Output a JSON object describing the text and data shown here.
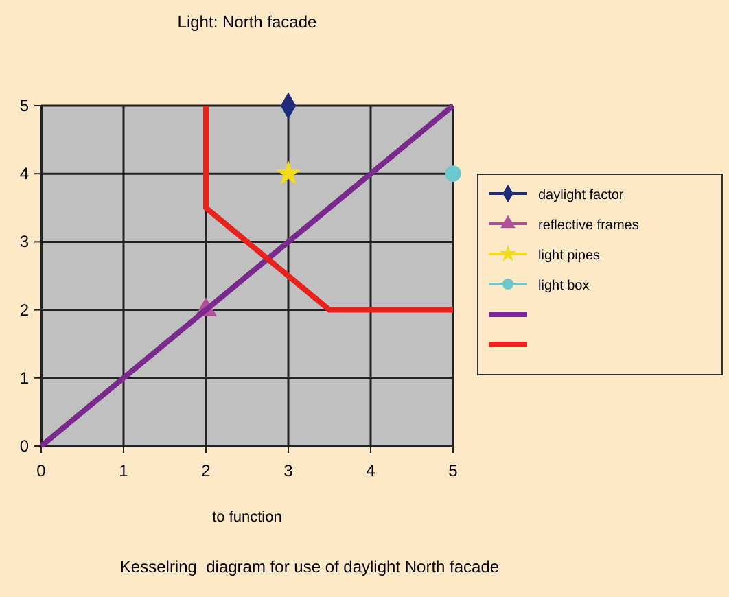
{
  "chart_data": {
    "type": "scatter",
    "title": "Light: North facade",
    "xlabel": "to function",
    "annotations": [
      "Kesselring  diagram for use of daylight North facade"
    ],
    "xlim": [
      0,
      5
    ],
    "ylim": [
      0,
      5
    ],
    "xticks": [
      0,
      1,
      2,
      3,
      4,
      5
    ],
    "yticks": [
      0,
      1,
      2,
      3,
      4,
      5
    ],
    "grid": true,
    "legend": "right",
    "series": [
      {
        "name": "daylight factor",
        "color": "#1f2a78",
        "marker": "diamond",
        "x": [
          3
        ],
        "values": [
          5
        ]
      },
      {
        "name": "reflective frames",
        "color": "#b0509a",
        "marker": "triangle",
        "x": [
          2
        ],
        "values": [
          2
        ]
      },
      {
        "name": "light pipes",
        "color": "#f2dc1c",
        "marker": "star",
        "x": [
          3
        ],
        "values": [
          4
        ]
      },
      {
        "name": "light box",
        "color": "#6cc8cc",
        "marker": "circle",
        "x": [
          5
        ],
        "values": [
          4
        ]
      },
      {
        "type": "line",
        "color": "#7a2a8c",
        "marker": "none",
        "x": [
          0,
          5
        ],
        "values": [
          0,
          5
        ]
      },
      {
        "type": "line",
        "color": "#e8221c",
        "marker": "none",
        "x": [
          2,
          2,
          3.5,
          5
        ],
        "values": [
          5,
          3.5,
          2,
          2
        ]
      }
    ]
  }
}
